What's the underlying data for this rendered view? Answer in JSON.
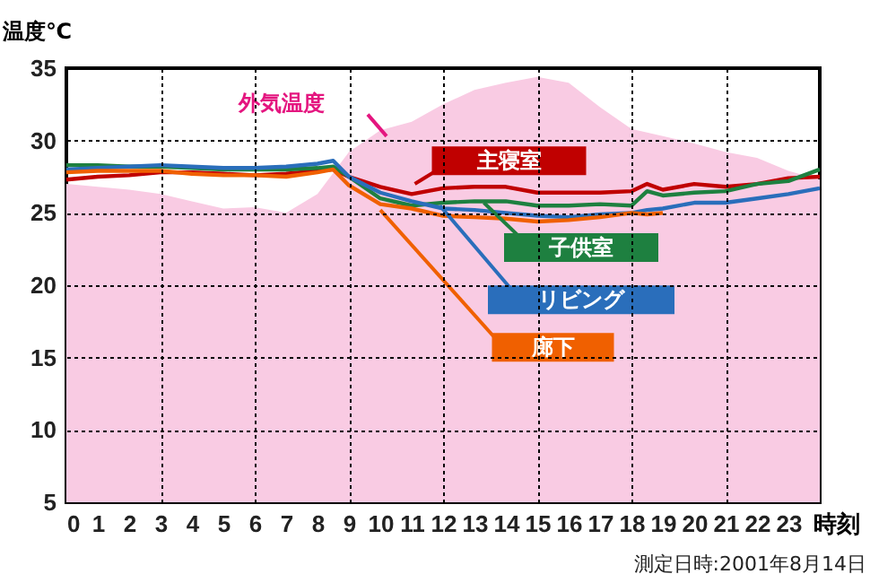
{
  "chart_data": {
    "type": "line",
    "ylabel": "温度℃",
    "xlabel": "時刻",
    "xlim": [
      0,
      24
    ],
    "xticks": [
      0,
      1,
      2,
      3,
      4,
      5,
      6,
      7,
      8,
      9,
      10,
      11,
      12,
      13,
      14,
      15,
      16,
      17,
      18,
      19,
      20,
      21,
      22,
      23
    ],
    "ylim": [
      5,
      35
    ],
    "yticks": [
      5,
      10,
      15,
      20,
      25,
      30,
      35
    ],
    "grid": true,
    "line_style": "solid",
    "marker": "none",
    "x": [
      0,
      1,
      2,
      3,
      4,
      5,
      6,
      7,
      8,
      8.5,
      9,
      10,
      11,
      12,
      13,
      14,
      15,
      16,
      17,
      18,
      18.5,
      19,
      20,
      21,
      22,
      23,
      24
    ],
    "series": [
      {
        "name": "外気温度",
        "type": "area",
        "color": "#f9cbe3",
        "x": [
          0,
          1,
          2,
          3,
          4,
          5,
          6,
          7,
          8,
          9,
          10,
          11,
          12,
          13,
          14,
          15,
          16,
          17,
          18,
          19,
          20,
          21,
          22,
          23,
          24
        ],
        "values": [
          27.0,
          26.8,
          26.6,
          26.3,
          25.8,
          25.3,
          25.4,
          25.0,
          26.3,
          29.2,
          30.7,
          31.3,
          32.5,
          33.5,
          34.0,
          34.4,
          34.0,
          32.3,
          30.8,
          30.3,
          29.8,
          29.2,
          28.8,
          27.9,
          27.3
        ]
      },
      {
        "name": "主寝室",
        "color": "#c00000",
        "values": [
          27.3,
          27.5,
          27.6,
          27.8,
          27.8,
          27.7,
          27.6,
          27.7,
          27.9,
          28.0,
          27.5,
          26.8,
          26.3,
          26.7,
          26.8,
          26.8,
          26.4,
          26.4,
          26.4,
          26.5,
          27.0,
          26.6,
          27.0,
          26.8,
          27.0,
          27.4,
          27.5
        ]
      },
      {
        "name": "子供室",
        "color": "#1e8040",
        "values": [
          28.3,
          28.3,
          28.2,
          28.2,
          28.1,
          28.0,
          28.0,
          28.0,
          28.1,
          28.2,
          27.5,
          26.0,
          25.5,
          25.7,
          25.8,
          25.8,
          25.5,
          25.5,
          25.6,
          25.5,
          26.5,
          26.2,
          26.4,
          26.5,
          27.0,
          27.2,
          28.0
        ]
      },
      {
        "name": "リビング",
        "color": "#2a6ebb",
        "values": [
          28.0,
          28.1,
          28.2,
          28.3,
          28.2,
          28.1,
          28.1,
          28.2,
          28.4,
          28.6,
          27.5,
          26.4,
          25.8,
          25.3,
          25.2,
          25.0,
          24.8,
          24.7,
          24.9,
          25.0,
          25.2,
          25.3,
          25.7,
          25.7,
          26.0,
          26.3,
          26.7
        ]
      },
      {
        "name": "廊下",
        "color": "#f06000",
        "values": [
          27.8,
          27.9,
          27.9,
          27.9,
          27.7,
          27.6,
          27.6,
          27.5,
          27.8,
          28.0,
          26.9,
          25.6,
          25.3,
          24.8,
          24.7,
          24.6,
          24.4,
          24.5,
          24.7,
          25.0,
          24.9,
          25.0,
          null,
          null,
          null,
          null,
          null
        ]
      }
    ],
    "annotations": [
      "測定日時:2001年8月14日"
    ]
  }
}
